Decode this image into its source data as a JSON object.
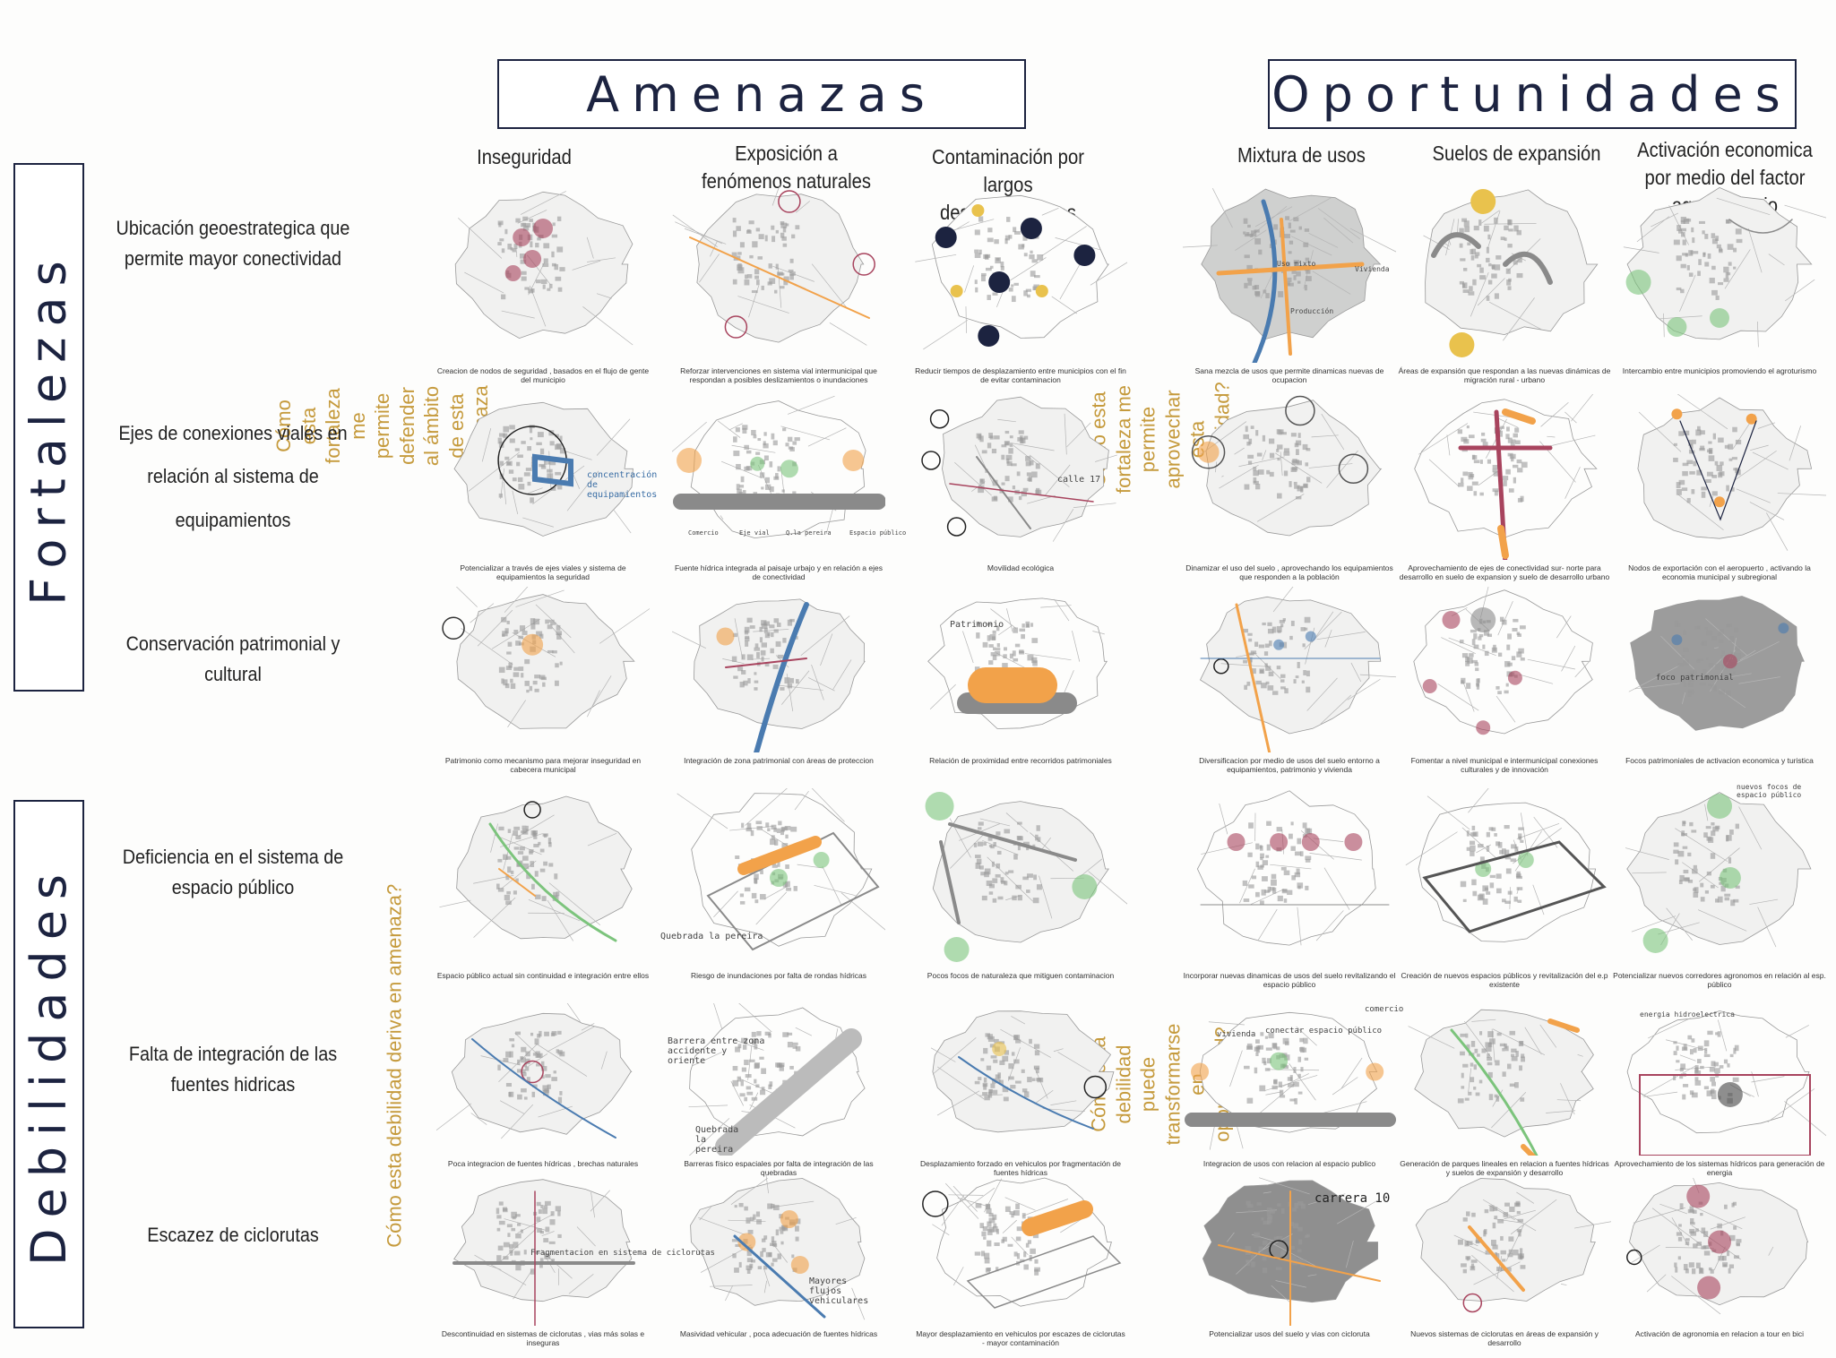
{
  "headers": {
    "threats": "Amenazas",
    "opportunities": "Oportunidades"
  },
  "sections": {
    "strengths": "Fortalezas",
    "weaknesses": "Debilidades"
  },
  "questions": {
    "q1": "Cómo esta fortaleza me permite defender al ámbito de esta amenaza ?",
    "q2": "Cómo esta fortaleza me permite aprovechar esta oportunidad?",
    "q3": "Cómo esta debilidad deriva en amenaza?",
    "q4": "Cómo esta debilidad puede transformarse en oportunidad?"
  },
  "column_headers": [
    "Inseguridad",
    "Exposición a fenómenos naturales",
    "Contaminación por largos desplazamientos",
    "Mixtura de usos",
    "Suelos de expansión",
    "Activación economica por medio del factor agropecuario"
  ],
  "row_headers": [
    "Ubicación geoestrategica que permite mayor conectividad",
    "Ejes de conexiones viales en relación al sistema de equipamientos",
    "Conservación patrimonial y cultural",
    "Deficiencia en el sistema de espacio público",
    "Falta de integración de las fuentes hidricas",
    "Escazez de ciclorutas"
  ],
  "captions": [
    [
      "Creacion de nodos de seguridad , basados en el flujo de gente del municipio",
      "Reforzar intervenciones en sistema vial intermunicipal que respondan a posibles deslizamientos o inundaciones",
      "Reducir tiempos de desplazamiento entre municipios con el fin de evitar contaminacion",
      "Sana mezcla de usos que permite dinamicas nuevas de ocupacion",
      "Áreas de expansión que respondan a las nuevas dinámicas de migración rural - urbano",
      "Intercambio entre municipios promoviendo el agroturismo"
    ],
    [
      "Potencializar a través de ejes viales y sistema de equipamientos la seguridad",
      "Fuente hídrica integrada al paisaje urbajo y en relación a ejes de conectividad",
      "Movilidad ecológica",
      "Dinamizar el uso del suelo , aprovechando los equipamientos que responden a la población",
      "Aprovechamiento de ejes de conectividad sur- norte para desarrollo en suelo de expansion y suelo de desarrollo urbano",
      "Nodos de exportación con el aeropuerto , activando la economia municipal y subregional"
    ],
    [
      "Patrimonio como mecanismo para mejorar inseguridad en cabecera municipal",
      "Integración de zona patrimonial con áreas de proteccion",
      "Relación de proximidad entre recorridos patrimoniales",
      "Diversificacion por medio de usos del suelo entorno a equipamientos, patrimonio y vivienda",
      "Fomentar a nivel municipal e intermunicipal conexiones culturales y de innovación",
      "Focos patrimoniales de activacion economica y turistica"
    ],
    [
      "Espacio público actual sin continuidad e integración entre ellos",
      "Riesgo de inundaciones por falta de rondas hídricas",
      "Pocos focos de naturaleza que mitiguen contaminacion",
      "Incorporar nuevas dinamicas de usos del suelo revitalizando el espacio público",
      "Creación de nuevos espacios públicos y revitalización del e.p existente",
      "Potencializar nuevos corredores agronomos en relación al esp. público"
    ],
    [
      "Poca integracion de fuentes hídricas , brechas naturales",
      "Barreras físico espaciales por falta de integración de las quebradas",
      "Desplazamiento forzado en vehiculos por fragmentación de fuentes hídricas",
      "Integracion de usos con relacion al espacio publico",
      "Generación de parques lineales en relacion a fuentes hídricas y suelos de expansión y desarrollo",
      "Aprovechamiento de los sistemas hídricos para generación de energia"
    ],
    [
      "Descontinuidad en sistemas de ciclorutas , vias más solas e inseguras",
      "Masividad vehicular , poca adecuación de fuentes hídricas",
      "Mayor desplazamiento en vehiculos por escazes de ciclorutas - mayor contaminación",
      "Potencializar usos del suelo y vias con cicloruta",
      "Nuevos sistemas de ciclorutas en áreas de expansión y desarrollo",
      "Activación de agronomia en relacion a tour en bici"
    ]
  ],
  "sketch_labels": {
    "concentracion": "concentración de equipamientos",
    "calle": "calle 17",
    "carrera": "carrera 10",
    "uso_mixto": "Uso mixto",
    "vivienda": "Vivienda",
    "produccion": "Producción",
    "comercio": "Comercio",
    "eje_vial": "Eje vial",
    "q_pereira": "Q.la pereira",
    "espacio_publico": "Espacio público",
    "patrimonio": "Patrimonio",
    "quebrada": "Quebrada la pereira",
    "barrera": "Barrera entre zona accidente y oriente",
    "quebrada2": "Quebrada la pereira",
    "fragmentacion": "Fragmentacion en sistema de ciclorutas",
    "flujos": "Mayores flujos vehiculares",
    "conectar": "conectar espacio público",
    "vivienda2": "vivienda",
    "comercio2": "comercio",
    "foco": "foco patrimonial",
    "nuevos_focos": "nuevos focos de espacio público",
    "energia": "energia hidroelectrica"
  },
  "colors": {
    "navy": "#1c2340",
    "gold": "#c59a3c",
    "orange": "#f2a24a",
    "pink": "#a8445e",
    "green": "#7cc47c",
    "blue": "#4a7bb0",
    "grey": "#8a8a8a"
  }
}
